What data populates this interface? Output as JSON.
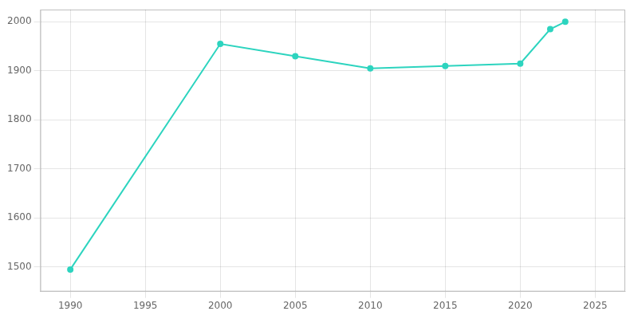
{
  "chart_data": {
    "type": "line",
    "x": [
      1990,
      2000,
      2005,
      2010,
      2015,
      2020,
      2022,
      2023
    ],
    "values": [
      1495,
      1955,
      1930,
      1905,
      1910,
      1915,
      1985,
      2000
    ],
    "color": "#2dd4bf",
    "marker": "circle",
    "xlim": [
      1988,
      2027
    ],
    "ylim": [
      1450,
      2025
    ],
    "xticks": [
      1990,
      1995,
      2000,
      2005,
      2010,
      2015,
      2020,
      2025
    ],
    "yticks": [
      1500,
      1600,
      1700,
      1800,
      1900,
      2000
    ],
    "grid": true
  }
}
